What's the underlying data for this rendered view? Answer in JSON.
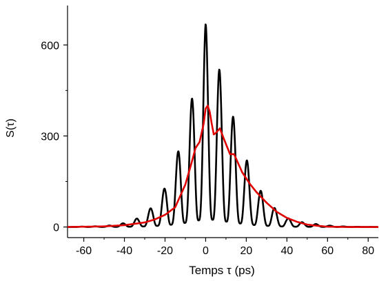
{
  "chart_data": {
    "type": "line",
    "xlabel": "Temps τ (ps)",
    "ylabel": "S(τ)",
    "xlim": [
      -68,
      85
    ],
    "ylim": [
      -35,
      730
    ],
    "xticks": [
      -60,
      -40,
      -20,
      0,
      20,
      40,
      60,
      80
    ],
    "yticks": [
      0,
      300,
      600
    ],
    "grid": false,
    "series": [
      {
        "color": "#000000",
        "style": "oscillating",
        "x": [
          -68,
          -50,
          -46,
          -40,
          -33,
          -26.5,
          -20,
          -13.5,
          -6.5,
          0,
          6.5,
          13.5,
          20,
          26.5,
          33.5,
          40,
          48,
          60,
          70,
          85
        ],
        "y": [
          0,
          3,
          6,
          13,
          30,
          65,
          130,
          250,
          430,
          670,
          525,
          365,
          225,
          125,
          65,
          30,
          15,
          5,
          1,
          0
        ],
        "modulation_period_ps": 6.8
      },
      {
        "color": "#e00000",
        "style": "smooth",
        "x": [
          -68,
          -50,
          -40,
          -30,
          -25,
          -20,
          -15,
          -10,
          -7,
          -5,
          -3,
          -1,
          0,
          1,
          2,
          3,
          4,
          5,
          7,
          9,
          12,
          14,
          16,
          18,
          20,
          22,
          25,
          30,
          35,
          40,
          45,
          50,
          55,
          60,
          70,
          85
        ],
        "y": [
          0,
          2,
          6,
          15,
          25,
          40,
          65,
          140,
          210,
          260,
          280,
          340,
          390,
          400,
          380,
          340,
          305,
          310,
          325,
          290,
          240,
          240,
          210,
          180,
          160,
          140,
          115,
          80,
          50,
          30,
          17,
          8,
          4,
          1,
          0,
          0
        ]
      }
    ]
  }
}
